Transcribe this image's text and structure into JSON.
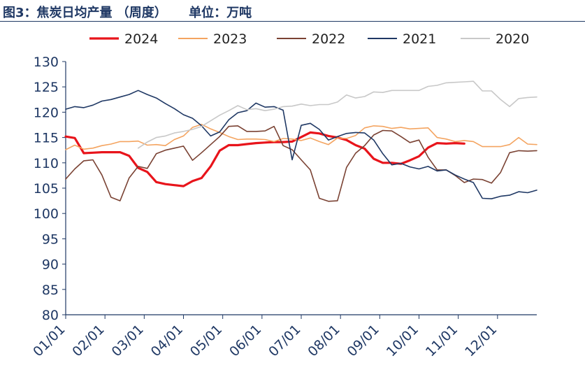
{
  "title": "图3：焦炭日均产量 （周度）     单位：万吨",
  "colors": {
    "axis_text": "#1f3864",
    "axis_line": "#1f3864"
  },
  "chart_data": {
    "type": "line",
    "title": "焦炭日均产量 （周度）",
    "unit": "万吨",
    "xlabel": "",
    "ylabel": "",
    "x_ticks": [
      "01/01",
      "02/01",
      "03/01",
      "04/01",
      "05/01",
      "06/01",
      "07/01",
      "08/01",
      "09/01",
      "10/01",
      "11/01",
      "12/01"
    ],
    "y_ticks": [
      80,
      85,
      90,
      95,
      100,
      105,
      110,
      115,
      120,
      125,
      130
    ],
    "ylim": [
      80,
      130
    ],
    "xlim": [
      0,
      52
    ],
    "x_unit": "week of year",
    "grid": false,
    "legend": "top",
    "series": [
      {
        "name": "2024",
        "color": "#e8141b",
        "width": 3.2,
        "x": [
          0,
          1,
          2,
          3,
          4,
          5,
          6,
          7,
          8,
          9,
          10,
          11,
          12,
          13,
          14,
          15,
          16,
          17,
          18,
          19,
          20,
          21,
          22,
          23,
          24,
          25,
          26,
          27,
          28,
          29,
          30,
          31,
          32,
          33,
          34,
          35,
          36,
          37,
          38,
          39,
          40,
          41,
          42,
          43,
          44
        ],
        "y": [
          115.2,
          114.9,
          111.9,
          112.0,
          112.1,
          112.1,
          112.1,
          111.4,
          109.0,
          108.2,
          106.2,
          105.8,
          105.6,
          105.4,
          106.4,
          107.0,
          109.3,
          112.4,
          113.5,
          113.5,
          113.7,
          113.9,
          114.0,
          114.1,
          114.1,
          114.2,
          115.1,
          116.0,
          115.8,
          115.3,
          115.0,
          114.5,
          113.5,
          112.8,
          110.8,
          110.0,
          110.0,
          109.8,
          110.5,
          111.3,
          113.0,
          113.9,
          113.8,
          113.9,
          113.8
        ]
      },
      {
        "name": "2023",
        "color": "#f4a460",
        "width": 1.6,
        "x": [
          0,
          1,
          2,
          3,
          4,
          5,
          6,
          7,
          8,
          9,
          10,
          11,
          12,
          13,
          14,
          15,
          16,
          17,
          18,
          19,
          20,
          21,
          22,
          23,
          24,
          25,
          26,
          27,
          28,
          29,
          30,
          31,
          32,
          33,
          34,
          35,
          36,
          37,
          38,
          39,
          40,
          41,
          42,
          43,
          44,
          45,
          46,
          47,
          48,
          49,
          50,
          51,
          52
        ],
        "y": [
          112.6,
          113.5,
          112.7,
          112.9,
          113.4,
          113.7,
          114.2,
          114.2,
          114.3,
          113.5,
          113.6,
          113.4,
          114.6,
          115.3,
          117.0,
          117.6,
          116.7,
          116.0,
          115.2,
          114.6,
          114.7,
          114.7,
          114.6,
          114.2,
          114.8,
          114.7,
          114.4,
          114.9,
          114.2,
          113.6,
          114.9,
          114.8,
          115.4,
          116.9,
          117.3,
          117.2,
          116.8,
          117.0,
          116.7,
          116.8,
          116.9,
          115.0,
          114.7,
          114.2,
          114.4,
          114.2,
          113.2,
          113.2,
          113.2,
          113.6,
          115.0,
          113.7,
          113.6
        ]
      },
      {
        "name": "2022",
        "color": "#7a4233",
        "width": 1.6,
        "x": [
          0,
          1,
          2,
          3,
          4,
          5,
          6,
          7,
          8,
          9,
          10,
          11,
          12,
          13,
          14,
          15,
          16,
          17,
          18,
          19,
          20,
          21,
          22,
          23,
          24,
          25,
          26,
          27,
          28,
          29,
          30,
          31,
          32,
          33,
          34,
          35,
          36,
          37,
          38,
          39,
          40,
          41,
          42,
          43,
          44,
          45,
          46,
          47,
          48,
          49,
          50,
          51,
          52
        ],
        "y": [
          106.8,
          108.8,
          110.4,
          110.6,
          107.6,
          103.2,
          102.5,
          107.0,
          109.3,
          108.9,
          111.8,
          112.5,
          112.9,
          113.3,
          110.5,
          112.0,
          113.6,
          115.2,
          117.2,
          117.3,
          116.2,
          116.2,
          116.3,
          117.2,
          113.4,
          112.6,
          110.6,
          108.6,
          103.0,
          102.4,
          102.5,
          109.1,
          111.9,
          113.4,
          115.5,
          116.4,
          116.3,
          115.2,
          114.0,
          114.5,
          111.1,
          108.6,
          108.6,
          107.5,
          106.1,
          106.8,
          106.7,
          106.0,
          108.1,
          112.0,
          112.4,
          112.3,
          112.4
        ]
      },
      {
        "name": "2021",
        "color": "#1f3864",
        "width": 1.6,
        "x": [
          0,
          1,
          2,
          3,
          4,
          5,
          6,
          7,
          8,
          9,
          10,
          11,
          12,
          13,
          14,
          15,
          16,
          17,
          18,
          19,
          20,
          21,
          22,
          23,
          24,
          25,
          26,
          27,
          28,
          29,
          30,
          31,
          32,
          33,
          34,
          35,
          36,
          37,
          38,
          39,
          40,
          41,
          42,
          43,
          44,
          45,
          46,
          47,
          48,
          49,
          50,
          51,
          52
        ],
        "y": [
          120.6,
          121.1,
          120.9,
          121.4,
          122.2,
          122.5,
          123.0,
          123.5,
          124.3,
          123.5,
          122.8,
          121.7,
          120.7,
          119.5,
          118.8,
          117.3,
          115.3,
          116.1,
          118.5,
          119.9,
          120.3,
          121.8,
          121.0,
          121.1,
          120.4,
          110.6,
          117.4,
          117.8,
          116.6,
          114.5,
          115.2,
          115.8,
          116.0,
          115.9,
          114.5,
          111.8,
          109.6,
          109.9,
          109.2,
          108.8,
          109.3,
          108.4,
          108.6,
          107.6,
          106.8,
          106.1,
          103.0,
          102.9,
          103.4,
          103.6,
          104.3,
          104.1,
          104.6
        ]
      },
      {
        "name": "2020",
        "color": "#c8c8c8",
        "width": 1.6,
        "x": [
          8,
          9,
          10,
          11,
          12,
          13,
          14,
          15,
          16,
          17,
          18,
          19,
          20,
          21,
          22,
          23,
          24,
          25,
          26,
          27,
          28,
          29,
          30,
          31,
          32,
          33,
          34,
          35,
          36,
          37,
          38,
          39,
          40,
          41,
          42,
          43,
          44,
          45,
          46,
          47,
          48,
          49,
          50,
          51,
          52
        ],
        "y": [
          112.9,
          114.1,
          115.0,
          115.3,
          115.9,
          116.2,
          116.6,
          117.2,
          118.3,
          119.4,
          120.3,
          121.3,
          120.5,
          120.7,
          120.3,
          120.6,
          121.1,
          121.2,
          121.6,
          121.3,
          121.5,
          121.5,
          122.0,
          123.4,
          122.8,
          123.1,
          124.0,
          123.9,
          124.3,
          124.3,
          124.3,
          124.3,
          125.1,
          125.3,
          125.8,
          125.9,
          126.0,
          126.1,
          124.2,
          124.2,
          122.5,
          121.1,
          122.7,
          122.9,
          123.0
        ]
      }
    ]
  }
}
